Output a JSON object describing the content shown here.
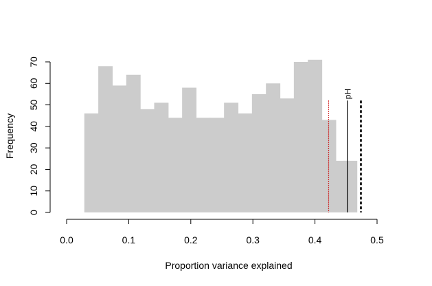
{
  "chart_data": {
    "type": "bar",
    "xlabel": "Proportion variance explained",
    "ylabel": "Frequency",
    "xlim": [
      0,
      0.5
    ],
    "ylim": [
      0,
      70
    ],
    "x_ticks": [
      "0.0",
      "0.1",
      "0.2",
      "0.3",
      "0.4",
      "0.5"
    ],
    "y_ticks": [
      "0",
      "10",
      "20",
      "30",
      "40",
      "50",
      "60",
      "70"
    ],
    "bin_width": 0.0225,
    "bins": [
      {
        "start": 0.0285,
        "value": 46
      },
      {
        "start": 0.051,
        "value": 68
      },
      {
        "start": 0.0735,
        "value": 59
      },
      {
        "start": 0.096,
        "value": 64
      },
      {
        "start": 0.1185,
        "value": 48
      },
      {
        "start": 0.141,
        "value": 51
      },
      {
        "start": 0.1635,
        "value": 44
      },
      {
        "start": 0.186,
        "value": 58
      },
      {
        "start": 0.2085,
        "value": 44
      },
      {
        "start": 0.231,
        "value": 44
      },
      {
        "start": 0.2535,
        "value": 51
      },
      {
        "start": 0.276,
        "value": 46
      },
      {
        "start": 0.2985,
        "value": 55
      },
      {
        "start": 0.321,
        "value": 60
      },
      {
        "start": 0.3435,
        "value": 53
      },
      {
        "start": 0.366,
        "value": 70
      },
      {
        "start": 0.3885,
        "value": 71
      },
      {
        "start": 0.411,
        "value": 43
      },
      {
        "start": 0.4335,
        "value": 24
      },
      {
        "start": 0.445,
        "value": 24
      }
    ],
    "reference_lines": [
      {
        "x": 0.422,
        "style": "dotted",
        "color": "#cc0000",
        "label": ""
      },
      {
        "x": 0.452,
        "style": "solid",
        "color": "#000000",
        "label": "pH"
      },
      {
        "x": 0.474,
        "style": "dashed",
        "color": "#000000",
        "label": ""
      }
    ],
    "bar_color": "#cccccc",
    "grid": false,
    "legend": "none"
  }
}
